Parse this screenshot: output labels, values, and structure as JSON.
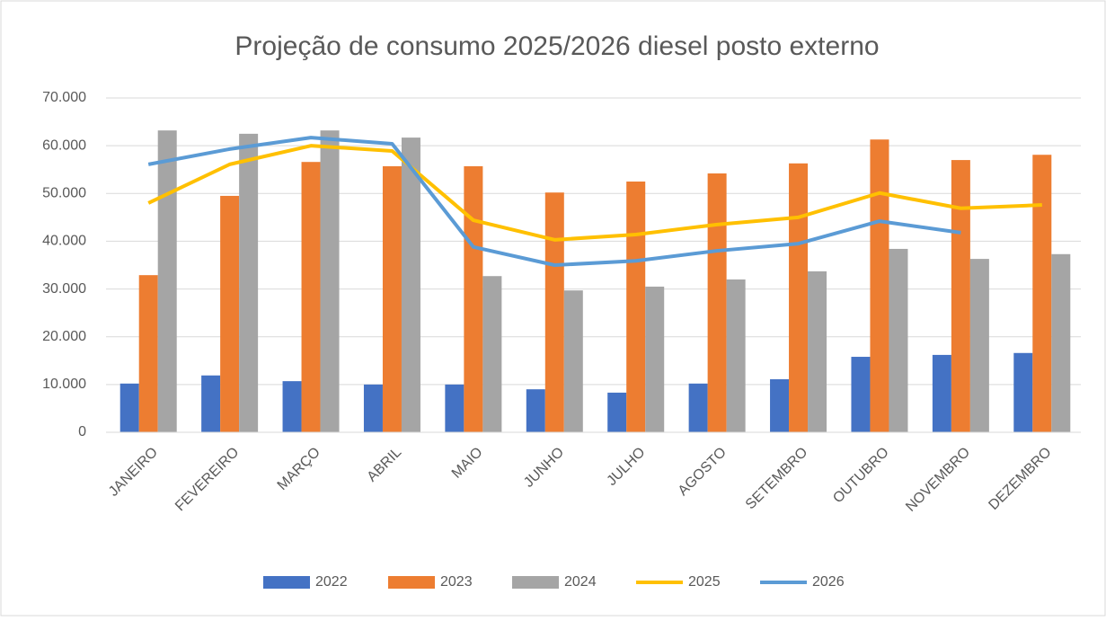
{
  "chart_data": {
    "type": "combo",
    "title": "Projeção de consumo 2025/2026 diesel posto externo",
    "categories": [
      "JANEIRO",
      "FEVEREIRO",
      "MARÇO",
      "ABRIL",
      "MAIO",
      "JUNHO",
      "JULHO",
      "AGOSTO",
      "SETEMBRO",
      "OUTUBRO",
      "NOVEMBRO",
      "DEZEMBRO"
    ],
    "series": [
      {
        "name": "2022",
        "type": "bar",
        "color": "#4472c4",
        "values": [
          10200,
          11900,
          10700,
          10000,
          10000,
          9000,
          8300,
          10200,
          11100,
          15800,
          16200,
          16600
        ]
      },
      {
        "name": "2023",
        "type": "bar",
        "color": "#ed7d31",
        "values": [
          32900,
          49500,
          56600,
          55700,
          55700,
          50200,
          52500,
          54200,
          56300,
          61300,
          57000,
          58100
        ]
      },
      {
        "name": "2024",
        "type": "bar",
        "color": "#a5a5a5",
        "values": [
          63200,
          62500,
          63200,
          61700,
          32700,
          29700,
          30500,
          32000,
          33700,
          38400,
          36300,
          37300
        ]
      },
      {
        "name": "2025",
        "type": "line",
        "color": "#ffc000",
        "values": [
          48000,
          56100,
          60000,
          58900,
          44400,
          40300,
          41400,
          43500,
          45000,
          50100,
          46900,
          47600
        ]
      },
      {
        "name": "2026",
        "type": "line",
        "color": "#5b9bd5",
        "values": [
          56100,
          59300,
          61700,
          60400,
          38800,
          35000,
          35900,
          38000,
          39500,
          44200,
          41800,
          null
        ]
      }
    ],
    "ylim": [
      0,
      70000
    ],
    "yticks": [
      0,
      {
        "value": 10000,
        "label": "10.000"
      },
      {
        "value": 20000,
        "label": "20.000"
      },
      {
        "value": 30000,
        "label": "30.000"
      },
      {
        "value": 40000,
        "label": "40.000"
      },
      {
        "value": 50000,
        "label": "50.000"
      },
      {
        "value": 60000,
        "label": "60.000"
      },
      {
        "value": 70000,
        "label": "70.000"
      }
    ],
    "grid": true,
    "legend": "bottom"
  }
}
